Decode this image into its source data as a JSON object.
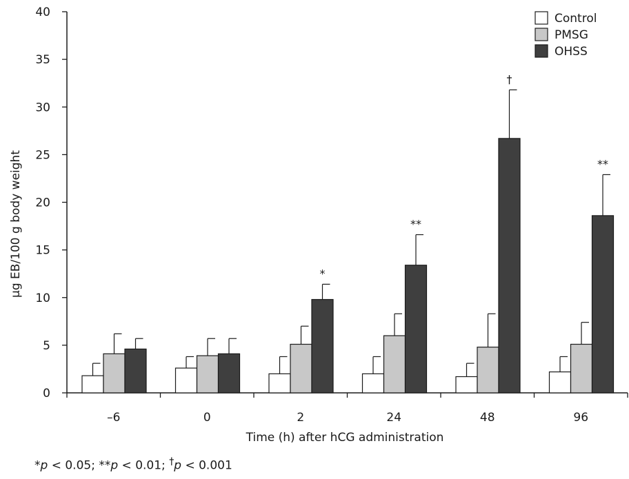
{
  "chart_data": {
    "type": "bar",
    "xlabel": "Time (h) after hCG administration",
    "ylabel": "µg EB/100 g body weight",
    "ylim": [
      0,
      40
    ],
    "yticks": [
      0,
      5,
      10,
      15,
      20,
      25,
      30,
      35,
      40
    ],
    "categories": [
      "–6",
      "0",
      "2",
      "24",
      "48",
      "96"
    ],
    "series": [
      {
        "name": "Control",
        "color": "#ffffff",
        "values": [
          1.8,
          2.6,
          2.0,
          2.0,
          1.7,
          2.2
        ],
        "errors": [
          1.3,
          1.2,
          1.8,
          1.8,
          1.4,
          1.6
        ]
      },
      {
        "name": "PMSG",
        "color": "#c8c8c8",
        "values": [
          4.1,
          3.9,
          5.1,
          6.0,
          4.8,
          5.1
        ],
        "errors": [
          2.1,
          1.8,
          1.9,
          2.3,
          3.5,
          2.3
        ]
      },
      {
        "name": "OHSS",
        "color": "#3f3f3f",
        "values": [
          4.6,
          4.1,
          9.8,
          13.4,
          26.7,
          18.6
        ],
        "errors": [
          1.1,
          1.6,
          1.6,
          3.2,
          5.1,
          4.3
        ]
      }
    ],
    "annotations": [
      "",
      "",
      "*",
      "**",
      "†",
      "**"
    ],
    "legend_position": "top-right",
    "grid": false
  },
  "footnote": {
    "s1": "*",
    "p1": "p",
    "t1": " < 0.05; **",
    "p2": "p",
    "t2": " < 0.01; ",
    "dagger": "†",
    "p3": "p",
    "t3": " < 0.001"
  }
}
